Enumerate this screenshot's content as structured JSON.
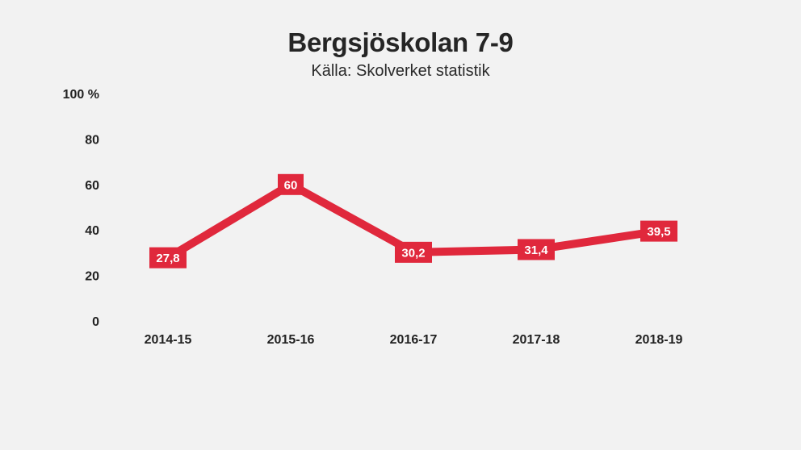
{
  "title": "Bergsjöskolan 7-9",
  "subtitle": "Källa: Skolverket statistik",
  "colors": {
    "background": "#f2f2f2",
    "line": "#e0283c",
    "label_text": "#ffffff",
    "axis_text": "#222222"
  },
  "chart_data": {
    "type": "line",
    "title": "Bergsjöskolan 7-9",
    "subtitle": "Källa: Skolverket statistik",
    "categories": [
      "2014-15",
      "2015-16",
      "2016-17",
      "2017-18",
      "2018-19"
    ],
    "series": [
      {
        "values": [
          27.8,
          60,
          30.2,
          31.4,
          39.5
        ],
        "data_labels": [
          "27,8",
          "60",
          "30,2",
          "31,4",
          "39,5"
        ]
      }
    ],
    "ylim": [
      0,
      100
    ],
    "yticks": [
      0,
      20,
      40,
      60,
      80,
      100
    ],
    "ytick_labels": [
      "0",
      "20",
      "40",
      "60",
      "80",
      "100 %"
    ],
    "grid": false,
    "legend": "none"
  }
}
